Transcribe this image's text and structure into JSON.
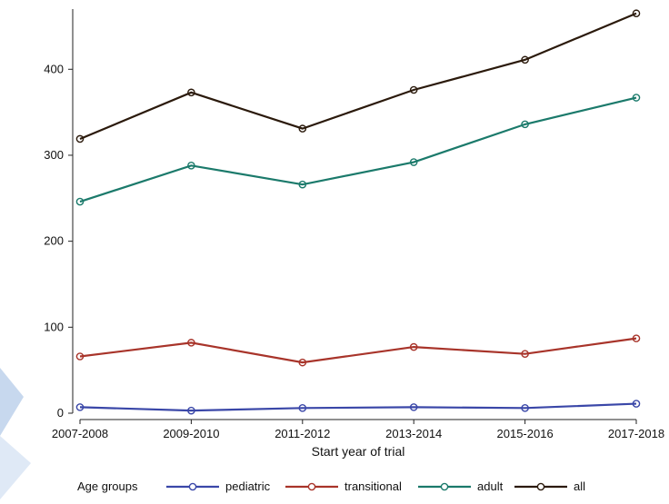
{
  "chart_data": {
    "type": "line",
    "categories": [
      "2007-2008",
      "2009-2010",
      "2011-2012",
      "2013-2014",
      "2015-2016",
      "2017-2018"
    ],
    "xlabel": "Start year of trial",
    "ylabel": "",
    "ylim": [
      0,
      470
    ],
    "yticks": [
      0,
      100,
      200,
      300,
      400
    ],
    "grid": false,
    "legend_title": "Age groups",
    "legend_position": "bottom",
    "series": [
      {
        "name": "pediatric",
        "color": "#3a47a8",
        "values": [
          7,
          3,
          6,
          7,
          6,
          11
        ]
      },
      {
        "name": "transitional",
        "color": "#a8342a",
        "values": [
          66,
          82,
          59,
          77,
          69,
          87
        ]
      },
      {
        "name": "adult",
        "color": "#1b7a6b",
        "values": [
          246,
          288,
          266,
          292,
          336,
          367
        ]
      },
      {
        "name": "all",
        "color": "#2b1a0c",
        "values": [
          319,
          373,
          331,
          376,
          411,
          465
        ]
      }
    ]
  }
}
